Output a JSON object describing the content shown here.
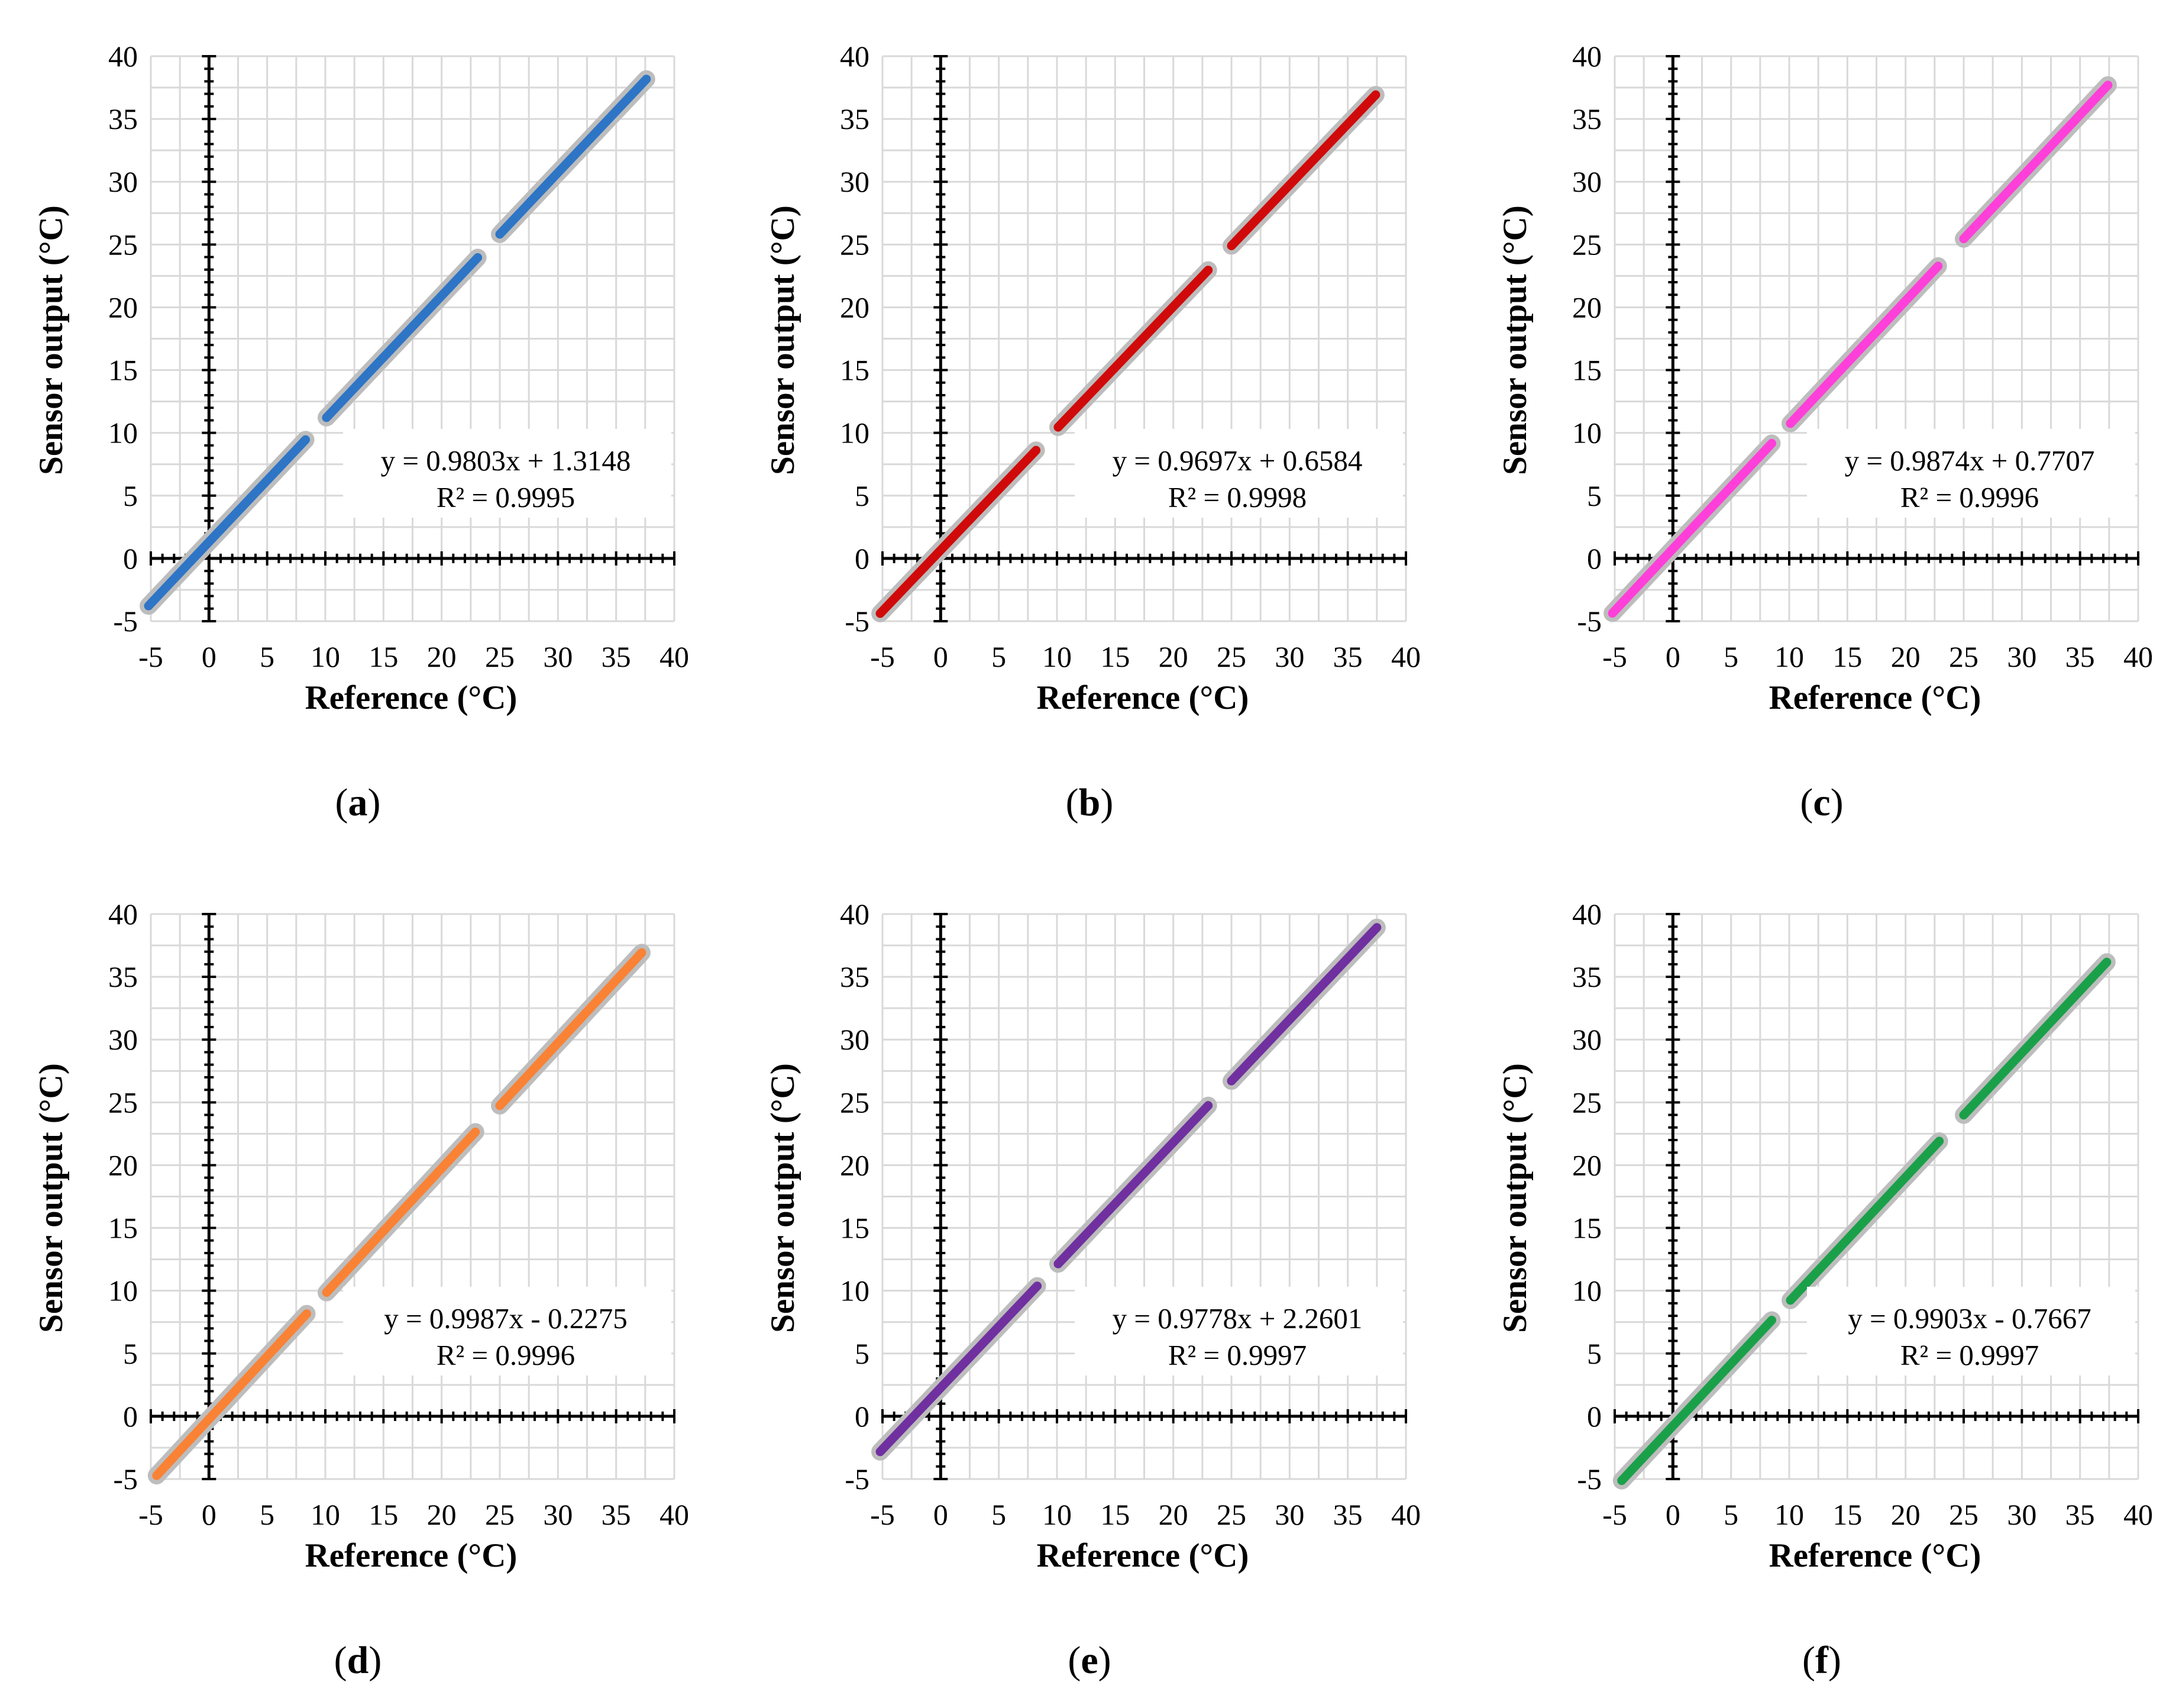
{
  "figure": {
    "panels": [
      {
        "label": "a",
        "color": "#2E75C6",
        "halo": "#BDBDBD",
        "equation": "y = 0.9803x + 1.3148",
        "r2": "R² = 0.9995",
        "slope": 0.9803,
        "intercept": 1.3148,
        "segments": [
          [
            -5.2,
            8.3
          ],
          [
            10.1,
            23.1
          ],
          [
            25.0,
            37.6
          ]
        ]
      },
      {
        "label": "b",
        "color": "#D00A0A",
        "halo": "#BDBDBD",
        "equation": "y = 0.9697x + 0.6584",
        "r2": "R² = 0.9998",
        "slope": 0.9697,
        "intercept": 0.6584,
        "segments": [
          [
            -5.2,
            8.2
          ],
          [
            10.1,
            23.0
          ],
          [
            25.0,
            37.4
          ]
        ]
      },
      {
        "label": "c",
        "color": "#FF3FD9",
        "halo": "#BDBDBD",
        "equation": "y = 0.9874x + 0.7707",
        "r2": "R² = 0.9996",
        "slope": 0.9874,
        "intercept": 0.7707,
        "segments": [
          [
            -5.2,
            8.5
          ],
          [
            10.1,
            22.8
          ],
          [
            25.0,
            37.4
          ]
        ]
      },
      {
        "label": "d",
        "color": "#F98235",
        "halo": "#BDBDBD",
        "equation": "y = 0.9987x - 0.2275",
        "r2": "R² = 0.9996",
        "slope": 0.9987,
        "intercept": -0.2275,
        "segments": [
          [
            -4.5,
            8.4
          ],
          [
            10.1,
            22.9
          ],
          [
            25.0,
            37.2
          ]
        ]
      },
      {
        "label": "e",
        "color": "#7030A0",
        "halo": "#BDBDBD",
        "equation": "y = 0.9778x + 2.2601",
        "r2": "R² = 0.9997",
        "slope": 0.9778,
        "intercept": 2.2601,
        "segments": [
          [
            -5.2,
            8.3
          ],
          [
            10.1,
            23.0
          ],
          [
            25.0,
            37.5
          ]
        ]
      },
      {
        "label": "f",
        "color": "#1BA04A",
        "halo": "#BDBDBD",
        "equation": "y = 0.9903x - 0.7667",
        "r2": "R² = 0.9997",
        "slope": 0.9903,
        "intercept": -0.7667,
        "segments": [
          [
            -4.4,
            8.5
          ],
          [
            10.1,
            22.9
          ],
          [
            25.0,
            37.3
          ]
        ]
      }
    ]
  },
  "chart_data": [
    {
      "type": "scatter",
      "panel": "a",
      "title": "",
      "xlabel": "Reference (°C)",
      "ylabel": "Sensor output (°C)",
      "xlim": [
        -5,
        40
      ],
      "ylim": [
        -5,
        40
      ],
      "xticks": [
        "-5",
        "0",
        "5",
        "10",
        "15",
        "20",
        "25",
        "30",
        "35",
        "40"
      ],
      "yticks": [
        "-5",
        "0",
        "5",
        "10",
        "15",
        "20",
        "25",
        "30",
        "35",
        "40"
      ],
      "grid": true,
      "trendline": {
        "slope": 0.9803,
        "intercept": 1.3148,
        "r2": 0.9995
      },
      "series": [
        {
          "name": "sensor",
          "x_range": [
            [
              -5.2,
              8.3
            ],
            [
              10.1,
              23.1
            ],
            [
              25.0,
              37.6
            ]
          ]
        }
      ]
    },
    {
      "type": "scatter",
      "panel": "b",
      "title": "",
      "xlabel": "Reference (°C)",
      "ylabel": "Sensor output (°C)",
      "xlim": [
        -5,
        40
      ],
      "ylim": [
        -5,
        40
      ],
      "xticks": [
        "-5",
        "0",
        "5",
        "10",
        "15",
        "20",
        "25",
        "30",
        "35",
        "40"
      ],
      "yticks": [
        "-5",
        "0",
        "5",
        "10",
        "15",
        "20",
        "25",
        "30",
        "35",
        "40"
      ],
      "grid": true,
      "trendline": {
        "slope": 0.9697,
        "intercept": 0.6584,
        "r2": 0.9998
      },
      "series": [
        {
          "name": "sensor",
          "x_range": [
            [
              -5.2,
              8.2
            ],
            [
              10.1,
              23.0
            ],
            [
              25.0,
              37.4
            ]
          ]
        }
      ]
    },
    {
      "type": "scatter",
      "panel": "c",
      "title": "",
      "xlabel": "Reference (°C)",
      "ylabel": "Sensor output (°C)",
      "xlim": [
        -5,
        40
      ],
      "ylim": [
        -5,
        40
      ],
      "xticks": [
        "-5",
        "0",
        "5",
        "10",
        "15",
        "20",
        "25",
        "30",
        "35",
        "40"
      ],
      "yticks": [
        "-5",
        "0",
        "5",
        "10",
        "15",
        "20",
        "25",
        "30",
        "35",
        "40"
      ],
      "grid": true,
      "trendline": {
        "slope": 0.9874,
        "intercept": 0.7707,
        "r2": 0.9996
      },
      "series": [
        {
          "name": "sensor",
          "x_range": [
            [
              -5.2,
              8.5
            ],
            [
              10.1,
              22.8
            ],
            [
              25.0,
              37.4
            ]
          ]
        }
      ]
    },
    {
      "type": "scatter",
      "panel": "d",
      "title": "",
      "xlabel": "Reference (°C)",
      "ylabel": "Sensor output (°C)",
      "xlim": [
        -5,
        40
      ],
      "ylim": [
        -5,
        40
      ],
      "xticks": [
        "-5",
        "0",
        "5",
        "10",
        "15",
        "20",
        "25",
        "30",
        "35",
        "40"
      ],
      "yticks": [
        "-5",
        "0",
        "5",
        "10",
        "15",
        "20",
        "25",
        "30",
        "35",
        "40"
      ],
      "grid": true,
      "trendline": {
        "slope": 0.9987,
        "intercept": -0.2275,
        "r2": 0.9996
      },
      "series": [
        {
          "name": "sensor",
          "x_range": [
            [
              -4.5,
              8.4
            ],
            [
              10.1,
              22.9
            ],
            [
              25.0,
              37.2
            ]
          ]
        }
      ]
    },
    {
      "type": "scatter",
      "panel": "e",
      "title": "",
      "xlabel": "Reference (°C)",
      "ylabel": "Sensor output (°C)",
      "xlim": [
        -5,
        40
      ],
      "ylim": [
        -5,
        40
      ],
      "xticks": [
        "-5",
        "0",
        "5",
        "10",
        "15",
        "20",
        "25",
        "30",
        "35",
        "40"
      ],
      "yticks": [
        "-5",
        "0",
        "5",
        "10",
        "15",
        "20",
        "25",
        "30",
        "35",
        "40"
      ],
      "grid": true,
      "trendline": {
        "slope": 0.9778,
        "intercept": 2.2601,
        "r2": 0.9997
      },
      "series": [
        {
          "name": "sensor",
          "x_range": [
            [
              -5.2,
              8.3
            ],
            [
              10.1,
              23.0
            ],
            [
              25.0,
              37.5
            ]
          ]
        }
      ]
    },
    {
      "type": "scatter",
      "panel": "f",
      "title": "",
      "xlabel": "Reference (°C)",
      "ylabel": "Sensor output (°C)",
      "xlim": [
        -5,
        40
      ],
      "ylim": [
        -5,
        40
      ],
      "xticks": [
        "-5",
        "0",
        "5",
        "10",
        "15",
        "20",
        "25",
        "30",
        "35",
        "40"
      ],
      "yticks": [
        "-5",
        "0",
        "5",
        "10",
        "15",
        "20",
        "25",
        "30",
        "35",
        "40"
      ],
      "grid": true,
      "trendline": {
        "slope": 0.9903,
        "intercept": -0.7667,
        "r2": 0.9997
      },
      "series": [
        {
          "name": "sensor",
          "x_range": [
            [
              -4.4,
              8.5
            ],
            [
              10.1,
              22.9
            ],
            [
              25.0,
              37.3
            ]
          ]
        }
      ]
    }
  ]
}
